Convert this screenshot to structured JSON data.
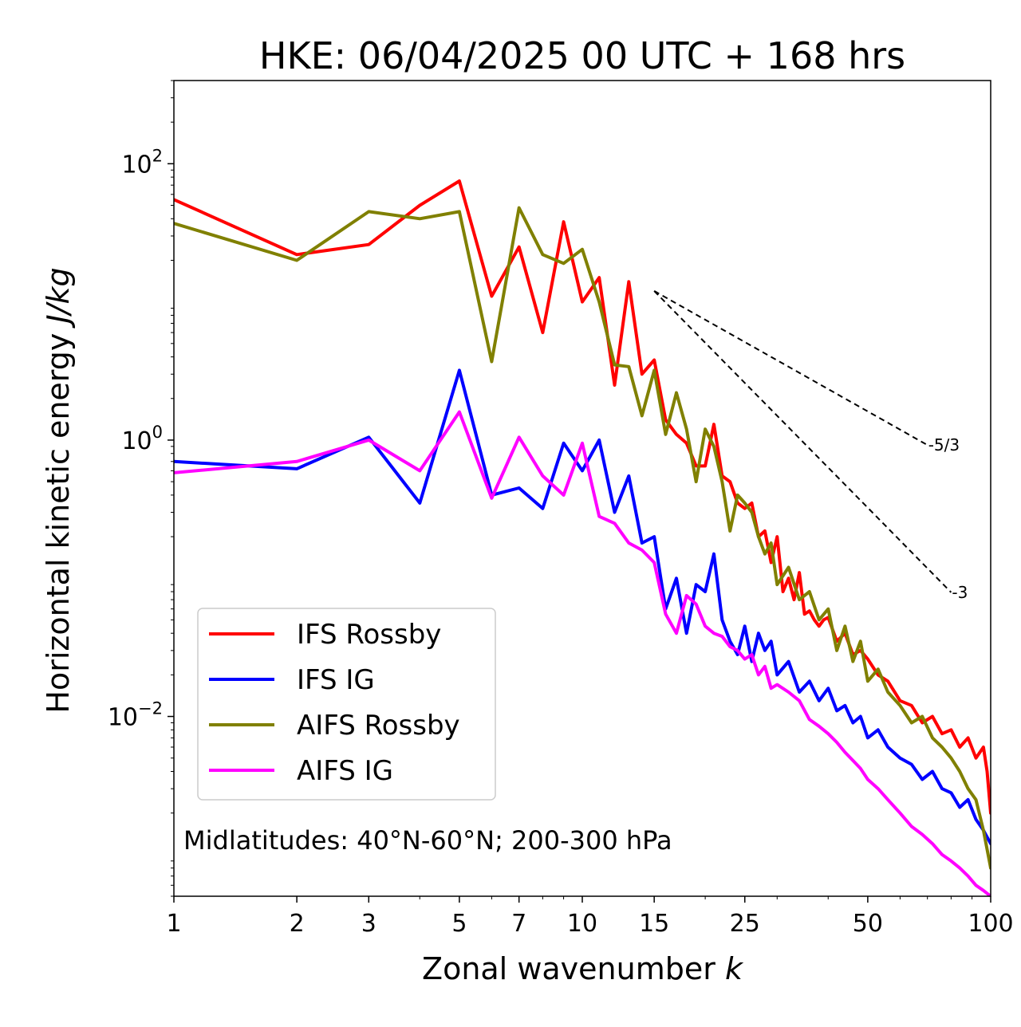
{
  "chart_data": {
    "type": "line",
    "title": "HKE: 06/04/2025 00 UTC + 168 hrs",
    "xlabel": "Zonal wavenumber",
    "xlabel_var": "k",
    "ylabel": "Horizontal kinetic energy",
    "ylabel_unit": "J/kg",
    "xscale": "log",
    "yscale": "log",
    "xlim": [
      1,
      100
    ],
    "ylim": [
      0.0005,
      400
    ],
    "x_ticks": [
      1,
      2,
      3,
      5,
      7,
      10,
      15,
      25,
      50,
      100
    ],
    "x_tick_labels": [
      "1",
      "2",
      "3",
      "5",
      "7",
      "10",
      "15",
      "25",
      "50",
      "100"
    ],
    "y_ticks": [
      0.01,
      1,
      100
    ],
    "y_tick_labels": [
      {
        "base": "10",
        "exp": "−2"
      },
      {
        "base": "10",
        "exp": "0"
      },
      {
        "base": "10",
        "exp": "2"
      }
    ],
    "grid": false,
    "legend_position": "lower-left",
    "annotation": "Midlatitudes: 40°N-60°N; 200-300 hPa",
    "reference_slopes": [
      {
        "label": "-5/3",
        "slope": -1.6667,
        "x_start": 15,
        "x_end": 70,
        "y_start": 12
      },
      {
        "label": "-3",
        "slope": -3,
        "x_start": 15,
        "x_end": 80,
        "y_start": 12
      }
    ],
    "series": [
      {
        "name": "IFS Rossby",
        "color": "#ff0000",
        "x": [
          1,
          2,
          3,
          4,
          5,
          6,
          7,
          8,
          9,
          10,
          11,
          12,
          13,
          14,
          15,
          16,
          17,
          18,
          19,
          20,
          21,
          22,
          23,
          24,
          25,
          26,
          27,
          28,
          29,
          30,
          31,
          32,
          33,
          34,
          35,
          36,
          37,
          38,
          39,
          40,
          42,
          44,
          46,
          48,
          50,
          53,
          56,
          60,
          64,
          68,
          72,
          76,
          80,
          84,
          88,
          92,
          96,
          98,
          100
        ],
        "y": [
          55,
          22,
          26,
          50,
          75,
          11,
          25,
          6,
          38,
          10,
          15,
          2.5,
          14,
          3,
          3.8,
          1.4,
          1.1,
          0.95,
          0.65,
          0.65,
          1.3,
          0.55,
          0.5,
          0.35,
          0.32,
          0.35,
          0.2,
          0.22,
          0.13,
          0.2,
          0.08,
          0.1,
          0.07,
          0.11,
          0.055,
          0.058,
          0.05,
          0.045,
          0.05,
          0.052,
          0.035,
          0.04,
          0.028,
          0.03,
          0.026,
          0.02,
          0.018,
          0.013,
          0.012,
          0.009,
          0.01,
          0.0075,
          0.008,
          0.006,
          0.007,
          0.005,
          0.006,
          0.004,
          0.002
        ]
      },
      {
        "name": "IFS IG",
        "color": "#0000ff",
        "x": [
          1,
          2,
          3,
          4,
          5,
          6,
          7,
          8,
          9,
          10,
          11,
          12,
          13,
          14,
          15,
          16,
          17,
          18,
          19,
          20,
          21,
          22,
          23,
          24,
          25,
          26,
          27,
          28,
          29,
          30,
          32,
          34,
          36,
          38,
          40,
          42,
          44,
          46,
          48,
          50,
          53,
          56,
          60,
          64,
          68,
          72,
          76,
          80,
          84,
          88,
          92,
          96,
          100
        ],
        "y": [
          0.7,
          0.62,
          1.05,
          0.35,
          3.2,
          0.4,
          0.45,
          0.32,
          0.95,
          0.6,
          1,
          0.3,
          0.55,
          0.18,
          0.2,
          0.06,
          0.1,
          0.04,
          0.09,
          0.08,
          0.15,
          0.05,
          0.035,
          0.028,
          0.045,
          0.025,
          0.04,
          0.03,
          0.035,
          0.02,
          0.025,
          0.015,
          0.018,
          0.013,
          0.016,
          0.011,
          0.012,
          0.009,
          0.01,
          0.007,
          0.008,
          0.006,
          0.005,
          0.0045,
          0.0035,
          0.004,
          0.003,
          0.0028,
          0.0022,
          0.0025,
          0.0018,
          0.0015,
          0.0012
        ]
      },
      {
        "name": "AIFS Rossby",
        "color": "#808000",
        "x": [
          1,
          2,
          3,
          4,
          5,
          6,
          7,
          8,
          9,
          10,
          11,
          12,
          13,
          14,
          15,
          16,
          17,
          18,
          19,
          20,
          21,
          22,
          23,
          24,
          25,
          26,
          27,
          28,
          29,
          30,
          32,
          34,
          36,
          38,
          40,
          42,
          44,
          46,
          48,
          50,
          53,
          56,
          60,
          64,
          68,
          72,
          76,
          80,
          84,
          88,
          92,
          96,
          100
        ],
        "y": [
          37,
          20,
          45,
          40,
          45,
          3.7,
          48,
          22,
          19,
          24,
          10,
          3.5,
          3.4,
          1.5,
          3.2,
          1.1,
          2.2,
          1.2,
          0.5,
          1.2,
          0.9,
          0.5,
          0.22,
          0.4,
          0.35,
          0.3,
          0.2,
          0.15,
          0.18,
          0.09,
          0.12,
          0.07,
          0.08,
          0.05,
          0.06,
          0.03,
          0.045,
          0.025,
          0.035,
          0.018,
          0.022,
          0.015,
          0.012,
          0.009,
          0.01,
          0.007,
          0.006,
          0.005,
          0.004,
          0.003,
          0.0025,
          0.0015,
          0.0008
        ]
      },
      {
        "name": "AIFS IG",
        "color": "#ff00ff",
        "x": [
          1,
          2,
          3,
          4,
          5,
          6,
          7,
          8,
          9,
          10,
          11,
          12,
          13,
          14,
          15,
          16,
          17,
          18,
          19,
          20,
          21,
          22,
          23,
          24,
          25,
          26,
          27,
          28,
          29,
          30,
          32,
          34,
          36,
          38,
          40,
          42,
          44,
          46,
          48,
          50,
          53,
          56,
          60,
          64,
          68,
          72,
          76,
          80,
          84,
          88,
          92,
          96,
          100
        ],
        "y": [
          0.58,
          0.7,
          1.0,
          0.6,
          1.6,
          0.38,
          1.05,
          0.55,
          0.4,
          0.95,
          0.28,
          0.25,
          0.18,
          0.16,
          0.13,
          0.055,
          0.04,
          0.075,
          0.065,
          0.045,
          0.04,
          0.038,
          0.032,
          0.03,
          0.026,
          0.028,
          0.02,
          0.023,
          0.016,
          0.017,
          0.015,
          0.013,
          0.0095,
          0.0085,
          0.0075,
          0.0065,
          0.0055,
          0.0048,
          0.0042,
          0.0035,
          0.003,
          0.0025,
          0.002,
          0.0016,
          0.0014,
          0.0012,
          0.001,
          0.0009,
          0.0008,
          0.0007,
          0.0006,
          0.00055,
          0.0005
        ]
      }
    ]
  }
}
